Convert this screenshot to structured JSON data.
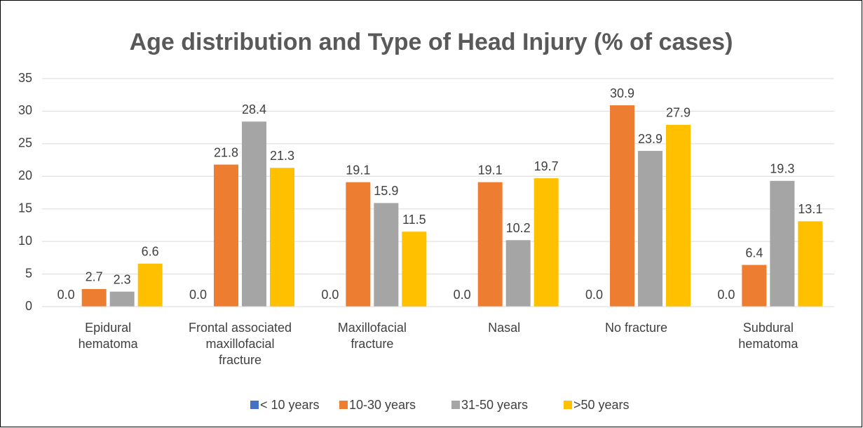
{
  "chart_data": {
    "type": "bar",
    "title": "Age distribution and Type of Head Injury (% of cases)",
    "categories": [
      "Epidural hematoma",
      "Frontal associated maxillofacial fracture",
      "Maxillofacial fracture",
      "Nasal",
      "No fracture",
      "Subdural hematoma"
    ],
    "series": [
      {
        "name": "< 10 years",
        "color": "#4472c4",
        "values": [
          0,
          0,
          0,
          0,
          0,
          0
        ],
        "value_labels": [
          "0.0",
          "0.0",
          "0.0",
          "0.0",
          "0.0",
          "0.0"
        ]
      },
      {
        "name": "10-30 years",
        "color": "#ed7d31",
        "values": [
          2.7,
          21.8,
          19.1,
          19.1,
          30.9,
          6.4
        ]
      },
      {
        "name": "31-50 years",
        "color": "#a5a5a5",
        "values": [
          2.3,
          28.4,
          15.9,
          10.2,
          23.9,
          19.3
        ]
      },
      {
        "name": ">50 years",
        "color": "#ffc000",
        "values": [
          6.6,
          21.3,
          11.5,
          19.7,
          27.9,
          13.1
        ]
      }
    ],
    "ylim": [
      0,
      35
    ],
    "yticks": [
      0,
      5,
      10,
      15,
      20,
      25,
      30,
      35
    ],
    "grid": true,
    "legend": "bottom"
  }
}
